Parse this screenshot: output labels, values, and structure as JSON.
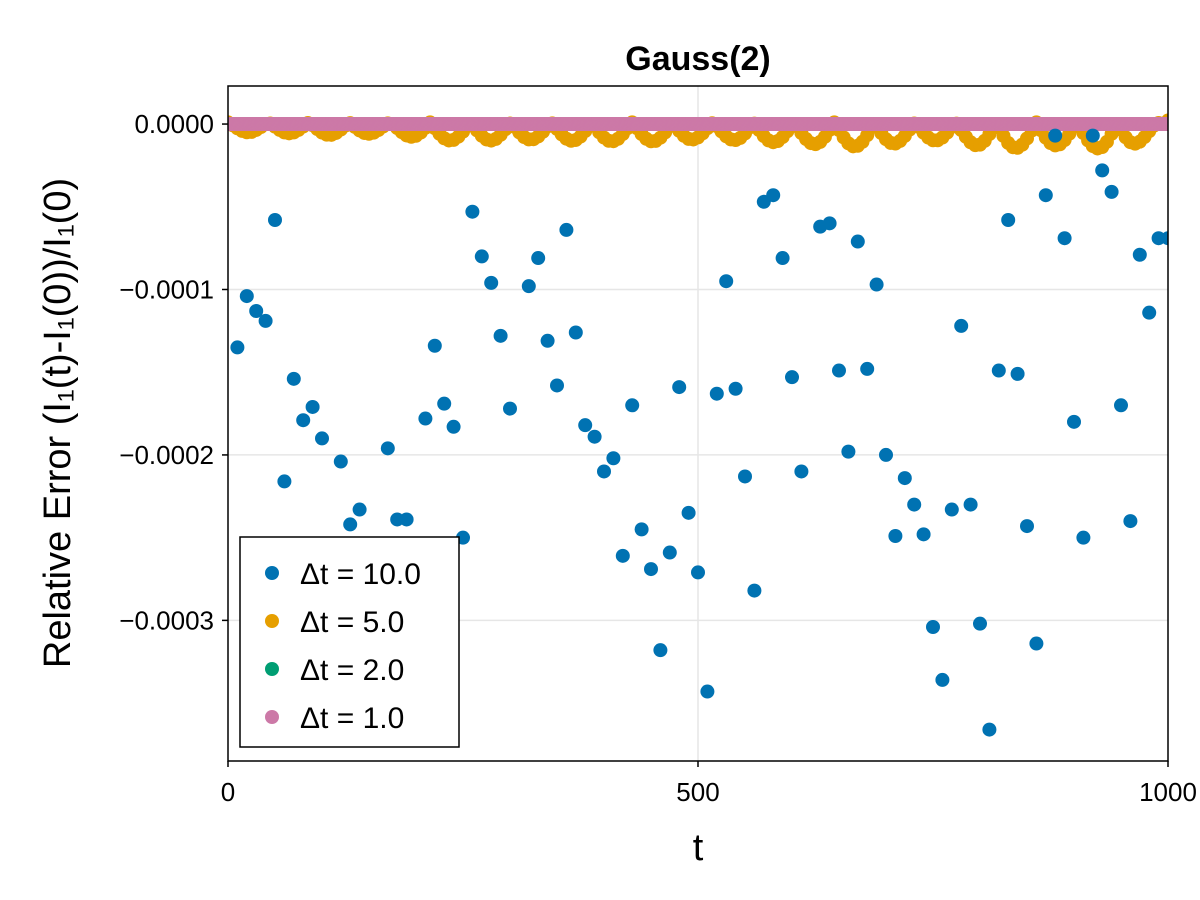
{
  "chart_data": {
    "type": "scatter",
    "title": "Gauss(2)",
    "xlabel": "t",
    "ylabel": "Relative Error (I₁(t)-I₁(0))/I₁(0)",
    "xlim": [
      0,
      1000
    ],
    "ylim": [
      -0.000385,
      2.3e-05
    ],
    "xticks": [
      0,
      500,
      1000
    ],
    "xtick_labels": [
      "0",
      "500",
      "1000"
    ],
    "yticks": [
      0,
      -0.0001,
      -0.0002,
      -0.0003
    ],
    "ytick_labels": [
      "0.0000",
      "−0.0001",
      "−0.0002",
      "−0.0003"
    ],
    "grid": true,
    "legend_position": "bottom-left",
    "series": [
      {
        "name": "Δt = 10.0",
        "color": "#0072b2",
        "x": [
          10,
          20,
          30,
          40,
          50,
          60,
          70,
          80,
          90,
          100,
          120,
          130,
          140,
          170,
          180,
          190,
          210,
          220,
          230,
          240,
          250,
          260,
          270,
          280,
          290,
          300,
          320,
          330,
          340,
          350,
          360,
          370,
          380,
          390,
          400,
          410,
          420,
          430,
          440,
          450,
          460,
          470,
          480,
          490,
          500,
          510,
          520,
          530,
          540,
          550,
          560,
          570,
          580,
          590,
          600,
          610,
          630,
          640,
          650,
          660,
          670,
          680,
          690,
          700,
          710,
          720,
          730,
          740,
          750,
          760,
          770,
          780,
          790,
          800,
          810,
          820,
          830,
          840,
          850,
          860,
          870,
          880,
          890,
          900,
          910,
          920,
          930,
          940,
          950,
          960,
          970,
          980,
          990,
          1000
        ],
        "values": [
          -0.000135,
          -0.000104,
          -0.000113,
          -0.000119,
          -5.8e-05,
          -0.000216,
          -0.000154,
          -0.000179,
          -0.000171,
          -0.00019,
          -0.000204,
          -0.000242,
          -0.000233,
          -0.000196,
          -0.000239,
          -0.000239,
          -0.000178,
          -0.000134,
          -0.000169,
          -0.000183,
          -0.00025,
          -5.3e-05,
          -8e-05,
          -9.6e-05,
          -0.000128,
          -0.000172,
          -9.8e-05,
          -8.1e-05,
          -0.000131,
          -0.000158,
          -6.4e-05,
          -0.000126,
          -0.000182,
          -0.000189,
          -0.00021,
          -0.000202,
          -0.000261,
          -0.00017,
          -0.000245,
          -0.000269,
          -0.000318,
          -0.000259,
          -0.000159,
          -0.000235,
          -0.000271,
          -0.000343,
          -0.000163,
          -9.5e-05,
          -0.00016,
          -0.000213,
          -0.000282,
          -4.7e-05,
          -4.3e-05,
          -8.1e-05,
          -0.000153,
          -0.00021,
          -6.2e-05,
          -6e-05,
          -0.000149,
          -0.000198,
          -7.1e-05,
          -0.000148,
          -9.7e-05,
          -0.0002,
          -0.000249,
          -0.000214,
          -0.00023,
          -0.000248,
          -0.000304,
          -0.000336,
          -0.000233,
          -0.000122,
          -0.00023,
          -0.000302,
          -0.000366,
          -0.000149,
          -5.8e-05,
          -0.000151,
          -0.000243,
          -0.000314,
          -4.3e-05,
          -7e-06,
          -6.9e-05,
          -0.00018,
          -0.00025,
          -7e-06,
          -2.8e-05,
          -4.1e-05,
          -0.00017,
          -0.00024,
          -7.9e-05,
          -0.000114,
          -6.9e-05,
          -6.9e-05
        ]
      },
      {
        "name": "Δt = 5.0",
        "color": "#e69f00",
        "x": [
          0,
          40,
          80,
          125,
          170,
          215,
          255,
          300,
          340,
          385,
          430,
          470,
          515,
          555,
          600,
          640,
          685,
          730,
          770,
          815,
          860,
          900,
          945,
          990,
          1000
        ],
        "values": [
          -4e-06,
          -4e-06,
          -5e-06,
          -6e-06,
          -4e-06,
          -9e-06,
          -9e-06,
          -9e-06,
          -8e-06,
          -1e-05,
          -9e-06,
          -1e-05,
          -7e-06,
          -1e-05,
          -1e-05,
          -1.2e-05,
          -1.3e-05,
          -9e-06,
          -9e-06,
          -1.4e-05,
          -1.3e-05,
          -1.1e-05,
          -1.6e-05,
          -5e-06,
          3e-06
        ],
        "oscillation": "sawtooth between 0.0000 and the listed troughs, period ≈ 43"
      },
      {
        "name": "Δt = 2.0",
        "color": "#009e73",
        "x": [
          0,
          1000
        ],
        "values": [
          0,
          0
        ]
      },
      {
        "name": "Δt = 1.0",
        "color": "#cc79a7",
        "x": [
          0,
          1000
        ],
        "values": [
          0,
          0
        ]
      }
    ]
  }
}
